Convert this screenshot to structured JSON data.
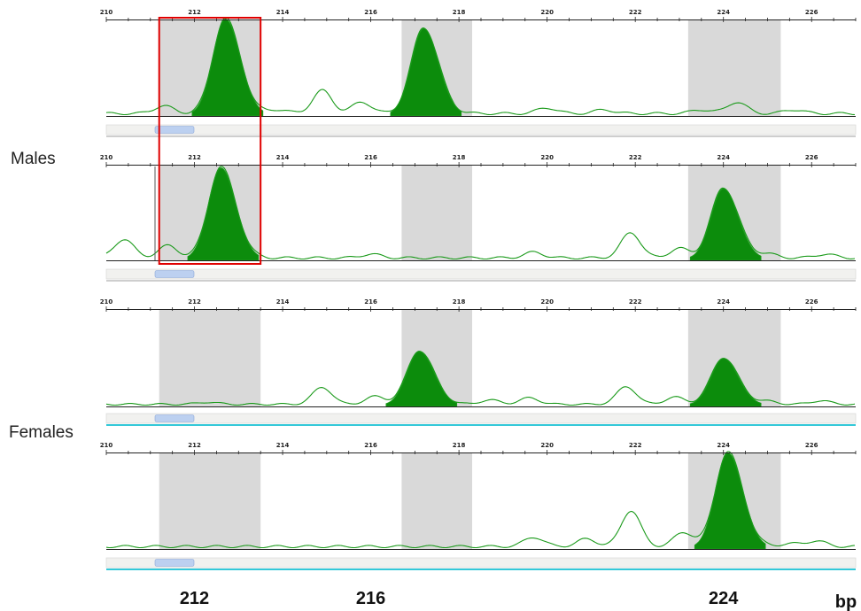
{
  "groups": [
    {
      "label": "Males",
      "panels": [
        0,
        1
      ]
    },
    {
      "label": "Females",
      "panels": [
        2,
        3
      ]
    }
  ],
  "bottom_axis": {
    "labels": [
      {
        "text": "212",
        "value": 212
      },
      {
        "text": "216",
        "value": 216
      },
      {
        "text": "224",
        "value": 224
      }
    ],
    "unit": "bp"
  },
  "colors": {
    "trace": "#1a9a1a",
    "peak_fill": "#0c8c0c",
    "bin_shade": "#d9d9d9",
    "highlight_box": "#e00000",
    "scrollbar_thumb": "#bcd0f0",
    "scrollbar_underline_female": "#33c8d8"
  },
  "chart_data": {
    "type": "area",
    "title": "",
    "xlabel": "bp",
    "ylabel": "",
    "xlim": [
      210,
      227
    ],
    "grid": false,
    "ticks": [
      210,
      212,
      214,
      216,
      218,
      220,
      222,
      224,
      226
    ],
    "tick_labels": [
      "210",
      "212",
      "214",
      "216",
      "218",
      "220",
      "222",
      "224",
      "226"
    ],
    "bins": [
      [
        211.2,
        213.5
      ],
      [
        216.7,
        218.3
      ],
      [
        223.2,
        225.3
      ]
    ],
    "highlight": {
      "from": 211.2,
      "to": 213.5,
      "panels": [
        0,
        1
      ],
      "color": "red box"
    },
    "panels": [
      {
        "group": "Males",
        "peaks": [
          {
            "x": 212.7,
            "height": 1.0
          },
          {
            "x": 217.2,
            "height": 0.9
          }
        ],
        "stutter": [
          [
            211.3,
            0.08
          ],
          [
            213.9,
            0.04
          ],
          [
            214.9,
            0.24
          ],
          [
            215.8,
            0.12
          ],
          [
            220.0,
            0.06
          ],
          [
            221.3,
            0.04
          ],
          [
            223.5,
            0.04
          ],
          [
            224.3,
            0.12
          ],
          [
            225.6,
            0.04
          ]
        ]
      },
      {
        "group": "Males",
        "peaks": [
          {
            "x": 212.6,
            "height": 0.97
          },
          {
            "x": 224.0,
            "height": 0.75
          }
        ],
        "stutter": [
          [
            210.4,
            0.2
          ],
          [
            211.4,
            0.13
          ],
          [
            216.0,
            0.04
          ],
          [
            219.7,
            0.06
          ],
          [
            221.9,
            0.27
          ],
          [
            223.0,
            0.1
          ],
          [
            225.0,
            0.04
          ],
          [
            226.3,
            0.04
          ]
        ]
      },
      {
        "group": "Females",
        "peaks": [
          {
            "x": 217.1,
            "height": 0.76
          },
          {
            "x": 224.0,
            "height": 0.66
          }
        ],
        "stutter": [
          [
            212.3,
            0.03
          ],
          [
            214.9,
            0.24
          ],
          [
            216.1,
            0.11
          ],
          [
            218.7,
            0.06
          ],
          [
            219.6,
            0.09
          ],
          [
            221.8,
            0.25
          ],
          [
            222.9,
            0.1
          ],
          [
            225.0,
            0.04
          ],
          [
            226.2,
            0.05
          ]
        ]
      },
      {
        "group": "Females",
        "peaks": [
          {
            "x": 224.1,
            "height": 1.0
          }
        ],
        "stutter": [
          [
            219.7,
            0.1
          ],
          [
            220.9,
            0.08
          ],
          [
            221.9,
            0.38
          ],
          [
            223.1,
            0.15
          ],
          [
            225.5,
            0.03
          ],
          [
            226.1,
            0.06
          ]
        ]
      }
    ]
  }
}
